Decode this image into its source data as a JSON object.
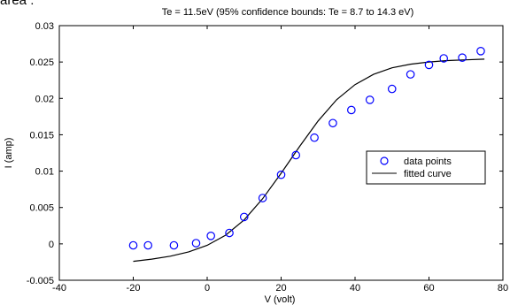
{
  "top_fragment": "area :",
  "chart_data": {
    "type": "scatter",
    "title": "Te = 11.5eV (95% confidence bounds: Te = 8.7 to 14.3 eV)",
    "xlabel": "V (volt)",
    "ylabel": "I (amp)",
    "xlim": [
      -40,
      80
    ],
    "ylim": [
      -0.005,
      0.03
    ],
    "xticks": [
      -40,
      -20,
      0,
      20,
      40,
      60,
      80
    ],
    "xtick_labels": [
      "-40",
      "-20",
      "0",
      "20",
      "40",
      "60",
      "80"
    ],
    "yticks": [
      -0.005,
      0,
      0.005,
      0.01,
      0.015,
      0.02,
      0.025,
      0.03
    ],
    "ytick_labels": [
      "-0.005",
      "0",
      "0.005",
      "0.01",
      "0.015",
      "0.02",
      "0.025",
      "0.03"
    ],
    "grid": false,
    "legend_position": "right",
    "series": [
      {
        "name": "data points",
        "kind": "markers",
        "color": "#0000ff",
        "x": [
          -20,
          -16,
          -9,
          -3,
          1,
          6,
          10,
          15,
          20,
          24,
          29,
          34,
          39,
          44,
          50,
          55,
          60,
          64,
          69,
          74
        ],
        "y": [
          -0.0002,
          -0.0002,
          -0.0002,
          0.0001,
          0.0011,
          0.0015,
          0.0037,
          0.0063,
          0.0095,
          0.0122,
          0.0146,
          0.0166,
          0.0184,
          0.0198,
          0.0213,
          0.0233,
          0.0246,
          0.0255,
          0.0256,
          0.0265
        ]
      },
      {
        "name": "fitted curve",
        "kind": "line",
        "color": "#000000",
        "x": [
          -20,
          -15,
          -10,
          -5,
          0,
          5,
          10,
          15,
          20,
          25,
          30,
          35,
          40,
          45,
          50,
          55,
          60,
          65,
          70,
          75
        ],
        "y": [
          -0.0024,
          -0.0021,
          -0.0017,
          -0.0011,
          -0.0002,
          0.0012,
          0.0033,
          0.0062,
          0.0097,
          0.0134,
          0.0169,
          0.0198,
          0.0219,
          0.0233,
          0.0242,
          0.0247,
          0.025,
          0.0252,
          0.0253,
          0.0254
        ]
      }
    ]
  }
}
